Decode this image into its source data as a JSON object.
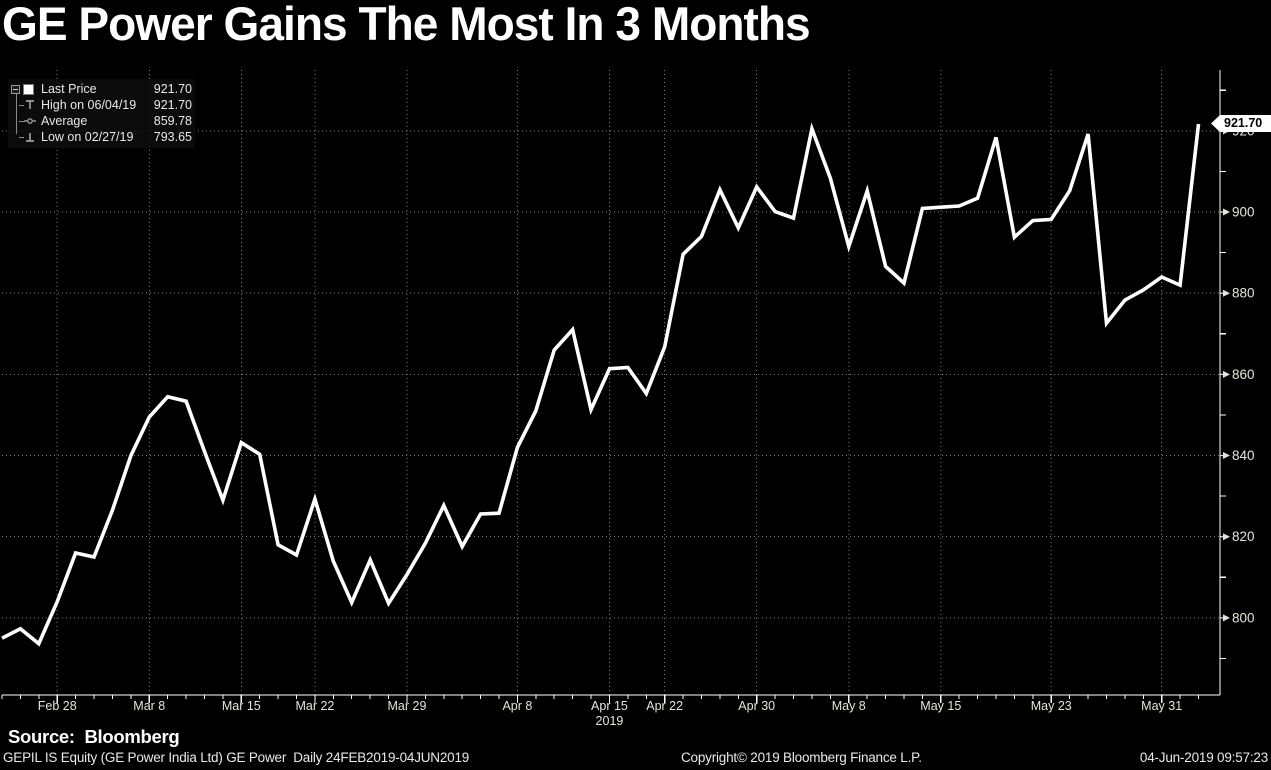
{
  "title": "GE Power Gains The Most In 3 Months",
  "legend": {
    "items": [
      {
        "icon": "last-price-swatch",
        "label": "Last Price",
        "value": "921.70"
      },
      {
        "icon": "high-marker",
        "label": "High on 06/04/19",
        "value": "921.70"
      },
      {
        "icon": "average-marker",
        "label": "Average",
        "value": "859.78"
      },
      {
        "icon": "low-marker",
        "label": "Low on 02/27/19",
        "value": "793.65"
      }
    ]
  },
  "price_tag": {
    "value": "921.70"
  },
  "footer": {
    "source": "Source:  Bloomberg",
    "ticker": "GEPIL IS Equity (GE Power India Ltd) GE Power  Daily 24FEB2019-04JUN2019",
    "copyright": "Copyright© 2019 Bloomberg Finance L.P.",
    "datetime": "04-Jun-2019 09:57:23"
  },
  "colors": {
    "background": "#000000",
    "line": "#ffffff",
    "grid": "#7d7d7d",
    "axis": "#ffffff",
    "label": "#e6e4da"
  },
  "chart_data": {
    "type": "line",
    "title": "GE Power Gains The Most In 3 Months",
    "series_name": "GEPIL IS Equity Last Price",
    "x_dates": [
      "02/25",
      "02/26",
      "02/27",
      "02/28",
      "03/01",
      "03/05",
      "03/06",
      "03/07",
      "03/08",
      "03/11",
      "03/12",
      "03/13",
      "03/14",
      "03/15",
      "03/18",
      "03/19",
      "03/20",
      "03/22",
      "03/25",
      "03/26",
      "03/27",
      "03/28",
      "03/29",
      "04/01",
      "04/02",
      "04/03",
      "04/04",
      "04/05",
      "04/08",
      "04/09",
      "04/10",
      "04/11",
      "04/12",
      "04/15",
      "04/16",
      "04/18",
      "04/22",
      "04/23",
      "04/24",
      "04/25",
      "04/26",
      "04/30",
      "05/02",
      "05/03",
      "05/06",
      "05/07",
      "05/08",
      "05/09",
      "05/10",
      "05/13",
      "05/14",
      "05/15",
      "05/16",
      "05/17",
      "05/20",
      "05/21",
      "05/22",
      "05/23",
      "05/24",
      "05/27",
      "05/28",
      "05/29",
      "05/30",
      "05/31",
      "06/03",
      "06/04"
    ],
    "values": [
      795.0,
      797.3,
      793.65,
      804.0,
      816.0,
      815.0,
      826.5,
      840.0,
      849.5,
      854.5,
      853.4,
      841.0,
      829.0,
      843.2,
      840.3,
      818.0,
      815.5,
      829.3,
      814.0,
      803.8,
      814.3,
      803.6,
      810.7,
      818.4,
      827.7,
      817.6,
      825.6,
      825.8,
      842.0,
      851.0,
      866.0,
      871.0,
      851.3,
      861.4,
      861.7,
      855.3,
      866.8,
      889.6,
      894.0,
      905.5,
      896.1,
      906.2,
      900.1,
      898.5,
      920.5,
      908.4,
      891.5,
      905.2,
      886.6,
      882.5,
      900.9,
      901.2,
      901.5,
      903.4,
      918.4,
      893.8,
      897.9,
      898.2,
      905.2,
      919.2,
      872.6,
      878.3,
      880.8,
      884.0,
      882.0,
      921.7
    ],
    "x_ticks": [
      {
        "index": 3,
        "label": "Feb 28"
      },
      {
        "index": 8,
        "label": "Mar 8"
      },
      {
        "index": 13,
        "label": "Mar 15"
      },
      {
        "index": 17,
        "label": "Mar 22"
      },
      {
        "index": 22,
        "label": "Mar 29"
      },
      {
        "index": 28,
        "label": "Apr 8"
      },
      {
        "index": 33,
        "label": "Apr 15"
      },
      {
        "index": 36,
        "label": "Apr 22"
      },
      {
        "index": 41,
        "label": "Apr 30"
      },
      {
        "index": 46,
        "label": "May 8"
      },
      {
        "index": 51,
        "label": "May 15"
      },
      {
        "index": 57,
        "label": "May 23"
      },
      {
        "index": 63,
        "label": "May 31"
      }
    ],
    "year_label": "2019",
    "year_label_tick_index": 33,
    "y_ticks": [
      800,
      820,
      840,
      860,
      880,
      900,
      920
    ],
    "y_minor_ticks": [
      790,
      810,
      830,
      850,
      870,
      890,
      910,
      930
    ],
    "ylim": [
      781,
      935
    ],
    "last_price": 921.7,
    "high": {
      "date": "06/04/19",
      "value": 921.7
    },
    "average": 859.78,
    "low": {
      "date": "02/27/19",
      "value": 793.65
    },
    "grid": true,
    "legend_position": "top-left"
  }
}
